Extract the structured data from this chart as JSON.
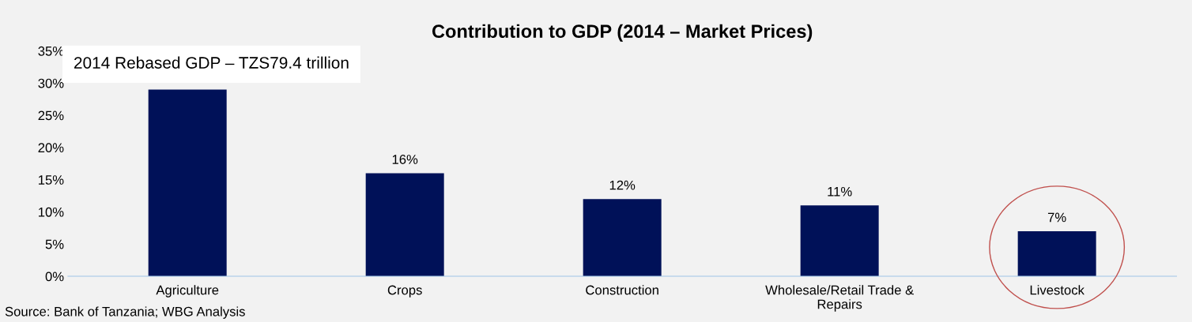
{
  "chart_data": {
    "type": "bar",
    "title": "Contribution to GDP (2014 – Market Prices)",
    "categories": [
      "Agriculture",
      "Crops",
      "Construction",
      "Wholesale/Retail Trade &\nRepairs",
      "Livestock"
    ],
    "values": [
      29,
      16,
      12,
      11,
      7
    ],
    "value_labels": [
      null,
      "16%",
      "12%",
      "11%",
      "7%"
    ],
    "color": "#001158",
    "ylim": [
      0,
      35
    ],
    "yticks": [
      {
        "value": 0,
        "label": "0%"
      },
      {
        "value": 5,
        "label": "5%"
      },
      {
        "value": 10,
        "label": "10%"
      },
      {
        "value": 15,
        "label": "15%"
      },
      {
        "value": 20,
        "label": "20%"
      },
      {
        "value": 25,
        "label": "25%"
      },
      {
        "value": 30,
        "label": "30%"
      },
      {
        "value": 35,
        "label": "35%"
      }
    ],
    "grid": false,
    "annotations": [
      "2014 Rebased GDP – TZS79.4 trillion",
      "Source: Bank of Tanzania; WBG Analysis"
    ]
  }
}
